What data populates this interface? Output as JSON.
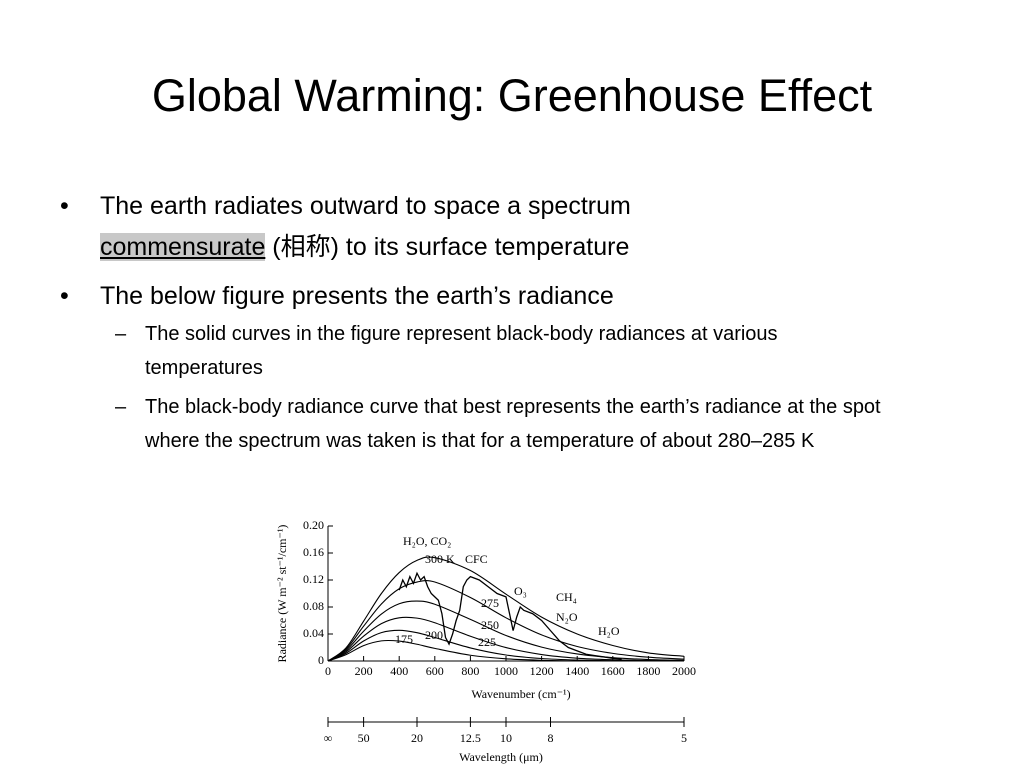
{
  "slide": {
    "title": "Global Warming: Greenhouse Effect",
    "bullets": [
      {
        "parts": [
          "The earth radiates outward to space a spectrum ",
          "commensurate",
          " (相称) to its surface temperature"
        ],
        "sub": []
      },
      {
        "parts": [
          "The below figure presents the earth’s radiance"
        ],
        "sub": [
          "The solid curves in the figure represent black-body radiances at various temperatures",
          "The black-body radiance curve that best represents the earth’s radiance at the spot where the spectrum was taken is that for a temperature of about 280–285 K"
        ]
      }
    ]
  },
  "chart_data": {
    "type": "line",
    "xlabel": "Wavenumber (cm⁻¹)",
    "ylabel": "Radiance (W m⁻² st⁻¹/cm⁻¹)",
    "x2label": "Wavelength (μm)",
    "xlim": [
      0,
      2000
    ],
    "xticks": [
      0,
      200,
      400,
      600,
      800,
      1000,
      1200,
      1400,
      1600,
      1800,
      2000
    ],
    "ylim": [
      0,
      0.2
    ],
    "yticks": [
      0,
      0.04,
      0.08,
      0.12,
      0.16,
      {
        "value": 0.2,
        "label": "0.20"
      }
    ],
    "x2ticks": [
      {
        "value": null,
        "label": "∞"
      },
      50,
      20,
      12.5,
      10,
      8,
      5
    ],
    "x": [
      0,
      100,
      200,
      300,
      400,
      500,
      600,
      800,
      1000,
      1200,
      1400,
      1600,
      1800,
      2000
    ],
    "series": [
      {
        "name": "300 K",
        "color": "#000000",
        "values": [
          0,
          0.019,
          0.059,
          0.1,
          0.131,
          0.149,
          0.153,
          0.134,
          0.099,
          0.065,
          0.04,
          0.023,
          0.012,
          0.007
        ]
      },
      {
        "name": "275",
        "color": "#000000",
        "values": [
          0,
          0.0173,
          0.0516,
          0.0845,
          0.107,
          0.117,
          0.117,
          0.094,
          0.064,
          0.0387,
          0.0215,
          0.0113,
          0.0056,
          0.0027
        ]
      },
      {
        "name": "250",
        "color": "#000000",
        "values": [
          0,
          0.0153,
          0.0441,
          0.0696,
          0.0848,
          0.0888,
          0.0841,
          0.0617,
          0.0378,
          0.0206,
          0.0104,
          0.0049,
          0.0022,
          0.001
        ]
      },
      {
        "name": "225",
        "color": "#000000",
        "values": [
          0,
          0.0133,
          0.0368,
          0.0554,
          0.064,
          0.0635,
          0.0567,
          0.0367,
          0.0199,
          0.0096,
          0.0042,
          0.0018,
          0.0007,
          0.0003
        ]
      },
      {
        "name": "200",
        "color": "#000000",
        "values": [
          0,
          0.0113,
          0.0296,
          0.042,
          0.0454,
          0.0419,
          0.0348,
          0.0194,
          0.0089,
          0.0037,
          0.0014,
          0.0005,
          0.0002,
          0.0001
        ]
      },
      {
        "name": "175",
        "color": "#000000",
        "values": [
          0,
          0.0093,
          0.0228,
          0.0298,
          0.0295,
          0.0248,
          0.0187,
          0.0085,
          0.0032,
          0.0011,
          0.0003,
          0.0001,
          0,
          0
        ]
      }
    ],
    "spectrum": {
      "color": "#000000",
      "x": [
        400,
        420,
        440,
        460,
        480,
        500,
        520,
        540,
        560,
        580,
        600,
        620,
        640,
        660,
        680,
        700,
        720,
        740,
        760,
        780,
        800,
        850,
        900,
        950,
        1000,
        1020,
        1040,
        1060,
        1080,
        1100,
        1150,
        1200,
        1250,
        1300,
        1350,
        1400,
        1450,
        1500,
        1550,
        1600,
        1650
      ],
      "values": [
        0.105,
        0.12,
        0.11,
        0.125,
        0.115,
        0.13,
        0.12,
        0.125,
        0.11,
        0.1,
        0.095,
        0.09,
        0.07,
        0.035,
        0.025,
        0.04,
        0.06,
        0.075,
        0.11,
        0.12,
        0.125,
        0.12,
        0.11,
        0.1,
        0.095,
        0.07,
        0.045,
        0.065,
        0.08,
        0.075,
        0.07,
        0.06,
        0.045,
        0.03,
        0.02,
        0.015,
        0.01,
        0.008,
        0.006,
        0.004,
        0.003
      ]
    },
    "annotations": [
      "H₂O, CO₂",
      "CFC",
      "O₃",
      "CH₄",
      "N₂O",
      "H₂O"
    ]
  }
}
